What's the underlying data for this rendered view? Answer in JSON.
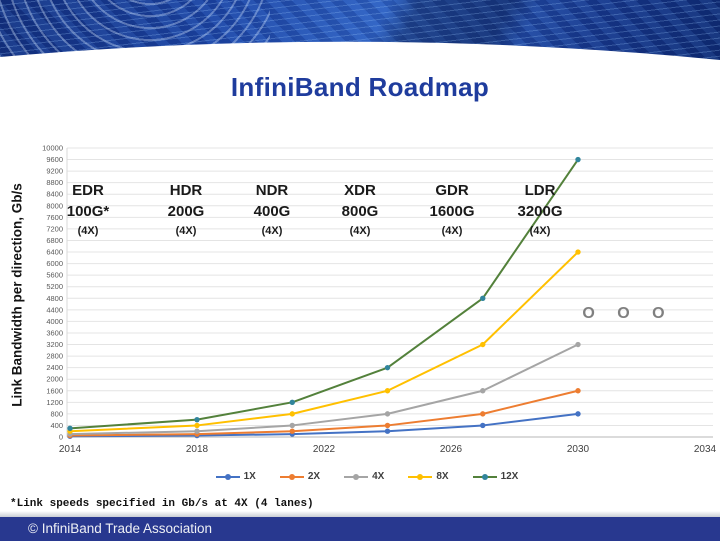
{
  "title": "InfiniBand Roadmap",
  "footnote": "*Link speeds specified in Gb/s at 4X (4 lanes)",
  "footer": {
    "copyright": "© InfiniBand Trade Association"
  },
  "colors": {
    "title_blue": "#1f3c9d",
    "footer_blue": "#28388f",
    "gridline": "#e4e4e4",
    "axis": "#b7b7b7"
  },
  "chart_data": {
    "type": "line",
    "title": "InfiniBand Roadmap",
    "xlabel": "",
    "ylabel": "Link Bandwidth per direction, Gb/s",
    "x": [
      2014,
      2018,
      2021,
      2024,
      2027,
      2030
    ],
    "x_ticks": [
      2014,
      2018,
      2022,
      2026,
      2030,
      2034
    ],
    "xlim": [
      2014,
      2034
    ],
    "ylim": [
      0,
      10000
    ],
    "y_tick_step": 400,
    "grid": true,
    "legend_position": "bottom",
    "series": [
      {
        "name": "1X",
        "color": "#4472C4",
        "marker_color": "#4472C4",
        "values": [
          25,
          50,
          100,
          200,
          400,
          800
        ]
      },
      {
        "name": "2X",
        "color": "#ED7D31",
        "marker_color": "#ED7D31",
        "values": [
          50,
          100,
          200,
          400,
          800,
          1600
        ]
      },
      {
        "name": "4X",
        "color": "#A5A5A5",
        "marker_color": "#A5A5A5",
        "values": [
          100,
          200,
          400,
          800,
          1600,
          3200
        ]
      },
      {
        "name": "8X",
        "color": "#FFC000",
        "marker_color": "#FFC000",
        "values": [
          200,
          400,
          800,
          1600,
          3200,
          6400
        ]
      },
      {
        "name": "12X",
        "color": "#53813B",
        "marker_color": "#31859C",
        "values": [
          300,
          600,
          1200,
          2400,
          4800,
          9600
        ]
      }
    ],
    "generations": [
      {
        "name": "EDR",
        "speed": "100G*",
        "lanes": "(4X)"
      },
      {
        "name": "HDR",
        "speed": "200G",
        "lanes": "(4X)"
      },
      {
        "name": "NDR",
        "speed": "400G",
        "lanes": "(4X)"
      },
      {
        "name": "XDR",
        "speed": "800G",
        "lanes": "(4X)"
      },
      {
        "name": "GDR",
        "speed": "1600G",
        "lanes": "(4X)"
      },
      {
        "name": "LDR",
        "speed": "3200G",
        "lanes": "(4X)"
      }
    ],
    "annotations": [
      "O O O"
    ]
  }
}
